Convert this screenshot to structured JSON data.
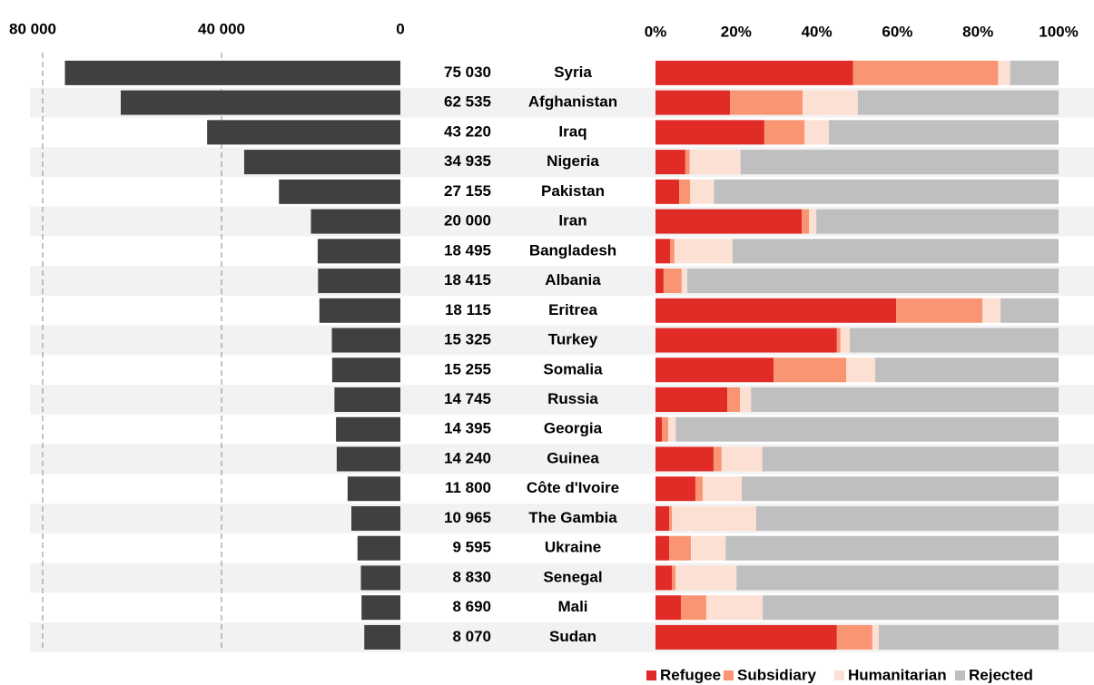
{
  "chart_data": [
    {
      "type": "bar",
      "orientation": "horizontal",
      "color": "#404040",
      "categories": [
        "Syria",
        "Afghanistan",
        "Iraq",
        "Nigeria",
        "Pakistan",
        "Iran",
        "Bangladesh",
        "Albania",
        "Eritrea",
        "Turkey",
        "Somalia",
        "Russia",
        "Georgia",
        "Guinea",
        "Côte d'Ivoire",
        "The Gambia",
        "Ukraine",
        "Senegal",
        "Mali",
        "Sudan"
      ],
      "values": [
        75030,
        62535,
        43220,
        34935,
        27155,
        20000,
        18495,
        18415,
        18115,
        15325,
        15255,
        14745,
        14395,
        14240,
        11800,
        10965,
        9595,
        8830,
        8690,
        8070
      ],
      "value_labels": [
        "75 030",
        "62 535",
        "43 220",
        "34 935",
        "27 155",
        "20 000",
        "18 495",
        "18 415",
        "18 115",
        "15 325",
        "15 255",
        "14 745",
        "14 395",
        "14 240",
        "11 800",
        "10 965",
        "9 595",
        "8 830",
        "8 690",
        "8 070"
      ],
      "xlim": [
        80000,
        0
      ],
      "xticks": [
        {
          "value": 80000,
          "label": "80 000"
        },
        {
          "value": 40000,
          "label": "40 000"
        },
        0
      ],
      "grid": true
    },
    {
      "type": "stacked_bar",
      "orientation": "horizontal",
      "legend": "bottom-right",
      "xlim": [
        0,
        100
      ],
      "xticks": [
        {
          "value": 0,
          "label": "0%"
        },
        {
          "value": 20,
          "label": "20%"
        },
        {
          "value": 40,
          "label": "40%"
        },
        {
          "value": 60,
          "label": "60%"
        },
        {
          "value": 80,
          "label": "80%"
        },
        {
          "value": 100,
          "label": "100%"
        }
      ],
      "series": [
        {
          "name": "Refugee",
          "color": "#e02b27",
          "values": [
            49,
            18.5,
            27,
            7.4,
            5.9,
            36.3,
            3.6,
            2,
            59.7,
            45,
            29.3,
            17.8,
            1.6,
            14.4,
            9.9,
            3.4,
            3.4,
            4.1,
            6.3,
            45
          ]
        },
        {
          "name": "Subsidiary",
          "color": "#f99572",
          "values": [
            36,
            18,
            10,
            1.1,
            2.7,
            1.8,
            1.1,
            4.5,
            21.4,
            0.9,
            18,
            3.2,
            1.6,
            2,
            1.8,
            0.7,
            5.4,
            0.9,
            6.3,
            8.8
          ]
        },
        {
          "name": "Humanitarian",
          "color": "#fde0d4",
          "values": [
            3,
            13.7,
            6,
            12.6,
            5.9,
            1.8,
            14.4,
            1.4,
            4.5,
            2.3,
            7.2,
            2.7,
            1.8,
            10.1,
            9.7,
            20.9,
            8.6,
            15.1,
            14,
            1.6
          ]
        },
        {
          "name": "Rejected",
          "color": "#bfbfbf",
          "values": [
            12,
            49.8,
            57,
            78.9,
            85.5,
            60.1,
            80.9,
            92.1,
            14.4,
            51.8,
            45.5,
            76.3,
            95,
            73.5,
            78.6,
            75,
            82.6,
            79.9,
            73.4,
            44.6
          ]
        }
      ]
    }
  ]
}
